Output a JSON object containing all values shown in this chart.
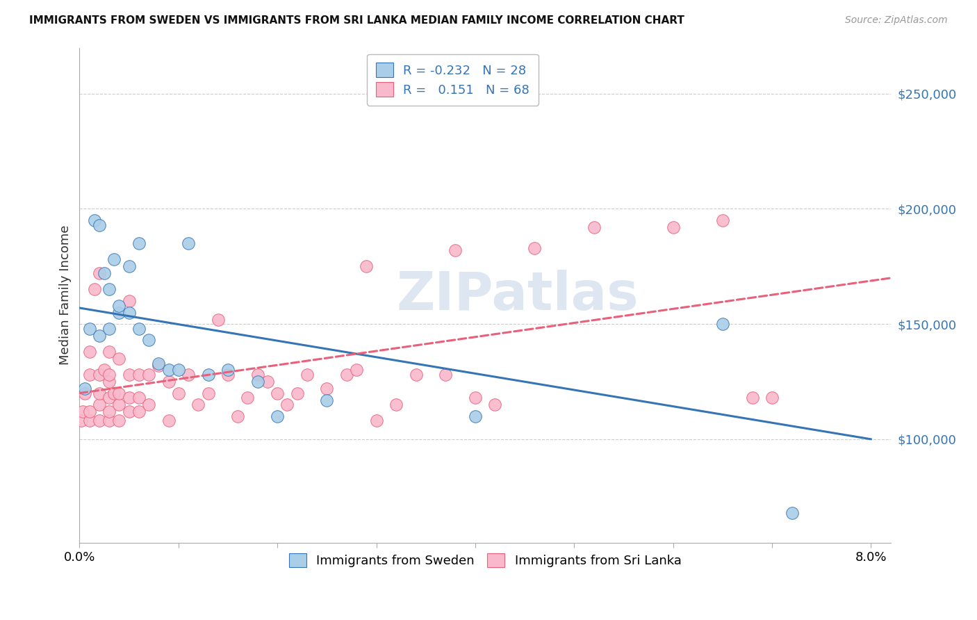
{
  "title": "IMMIGRANTS FROM SWEDEN VS IMMIGRANTS FROM SRI LANKA MEDIAN FAMILY INCOME CORRELATION CHART",
  "source": "Source: ZipAtlas.com",
  "ylabel": "Median Family Income",
  "watermark": "ZIPatlas",
  "legend_sweden_R": "-0.232",
  "legend_sweden_N": "28",
  "legend_srilanka_R": "0.151",
  "legend_srilanka_N": "68",
  "legend_label_sweden": "Immigrants from Sweden",
  "legend_label_srilanka": "Immigrants from Sri Lanka",
  "sweden_color": "#aacde8",
  "srilanka_color": "#f9b8cb",
  "sweden_line_color": "#3575b5",
  "srilanka_line_color": "#e8607a",
  "xlim": [
    0.0,
    0.082
  ],
  "ylim": [
    55000,
    270000
  ],
  "yticks": [
    100000,
    150000,
    200000,
    250000
  ],
  "ytick_labels": [
    "$100,000",
    "$150,000",
    "$200,000",
    "$250,000"
  ],
  "gridline_color": "#cccccc",
  "background_color": "#ffffff",
  "sweden_line_x0": 0.0,
  "sweden_line_y0": 157000,
  "sweden_line_x1": 0.08,
  "sweden_line_y1": 100000,
  "srilanka_line_x0": 0.0,
  "srilanka_line_y0": 120000,
  "srilanka_line_x1": 0.082,
  "srilanka_line_y1": 170000,
  "sweden_x": [
    0.0005,
    0.001,
    0.0015,
    0.002,
    0.002,
    0.0025,
    0.003,
    0.003,
    0.0035,
    0.004,
    0.004,
    0.005,
    0.005,
    0.006,
    0.006,
    0.007,
    0.008,
    0.009,
    0.01,
    0.011,
    0.013,
    0.015,
    0.018,
    0.02,
    0.025,
    0.04,
    0.065,
    0.072
  ],
  "sweden_y": [
    122000,
    148000,
    195000,
    145000,
    193000,
    172000,
    148000,
    165000,
    178000,
    155000,
    158000,
    155000,
    175000,
    148000,
    185000,
    143000,
    133000,
    130000,
    130000,
    185000,
    128000,
    130000,
    125000,
    110000,
    117000,
    110000,
    150000,
    68000
  ],
  "srilanka_x": [
    0.0002,
    0.0003,
    0.0005,
    0.001,
    0.001,
    0.001,
    0.001,
    0.0015,
    0.002,
    0.002,
    0.002,
    0.002,
    0.002,
    0.0025,
    0.003,
    0.003,
    0.003,
    0.003,
    0.003,
    0.003,
    0.0035,
    0.004,
    0.004,
    0.004,
    0.004,
    0.005,
    0.005,
    0.005,
    0.005,
    0.006,
    0.006,
    0.006,
    0.007,
    0.007,
    0.008,
    0.009,
    0.009,
    0.01,
    0.011,
    0.012,
    0.013,
    0.014,
    0.015,
    0.016,
    0.017,
    0.018,
    0.019,
    0.02,
    0.021,
    0.022,
    0.023,
    0.025,
    0.027,
    0.028,
    0.029,
    0.03,
    0.032,
    0.034,
    0.037,
    0.038,
    0.04,
    0.042,
    0.046,
    0.052,
    0.06,
    0.065,
    0.068,
    0.07
  ],
  "srilanka_y": [
    108000,
    112000,
    120000,
    108000,
    112000,
    128000,
    138000,
    165000,
    108000,
    115000,
    120000,
    128000,
    172000,
    130000,
    108000,
    112000,
    118000,
    125000,
    128000,
    138000,
    120000,
    108000,
    115000,
    120000,
    135000,
    112000,
    118000,
    128000,
    160000,
    112000,
    118000,
    128000,
    115000,
    128000,
    132000,
    108000,
    125000,
    120000,
    128000,
    115000,
    120000,
    152000,
    128000,
    110000,
    118000,
    128000,
    125000,
    120000,
    115000,
    120000,
    128000,
    122000,
    128000,
    130000,
    175000,
    108000,
    115000,
    128000,
    128000,
    182000,
    118000,
    115000,
    183000,
    192000,
    192000,
    195000,
    118000,
    118000
  ]
}
